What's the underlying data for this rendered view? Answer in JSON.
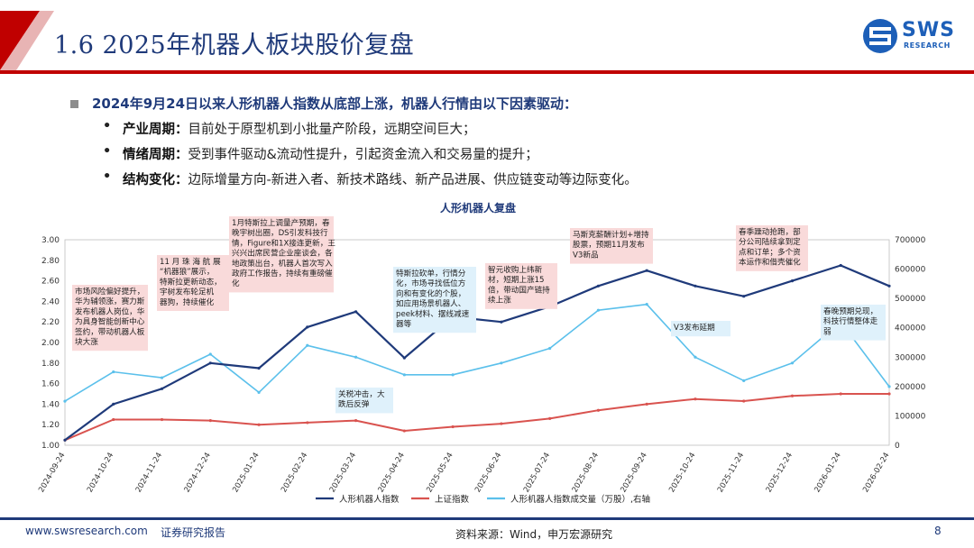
{
  "header": {
    "title": "1.6 2025年机器人板块股价复盘"
  },
  "logo": {
    "text": "SWS",
    "sub": "RESEARCH"
  },
  "bullets": {
    "main": "2024年9月24日以来人形机器人指数从底部上涨，机器人行情由以下因素驱动：",
    "items": [
      {
        "key": "产业周期：",
        "text": "目前处于原型机到小批量产阶段，远期空间巨大；"
      },
      {
        "key": "情绪周期：",
        "text": "受到事件驱动&流动性提升，引起资金流入和交易量的提升；"
      },
      {
        "key": "结构变化：",
        "text": "边际增量方向-新进入者、新技术路线、新产品进展、供应链变动等边际变化。"
      }
    ]
  },
  "colors": {
    "index": "#1f3a7a",
    "sh": "#d9534f",
    "vol": "#5bc0eb",
    "brand": "#c00000",
    "annBg": "#f9dada",
    "annBg2": "#dff1fb"
  },
  "chart_data": {
    "type": "line",
    "title": "人形机器人复盘",
    "x": [
      "2024-09-24",
      "2024-10-24",
      "2024-11-24",
      "2024-12-24",
      "2025-01-24",
      "2025-02-24",
      "2025-03-24",
      "2025-04-24",
      "2025-05-24",
      "2025-06-24",
      "2025-07-24",
      "2025-08-24",
      "2025-09-24",
      "2025-10-24",
      "2025-11-24",
      "2025-12-24",
      "2026-01-24",
      "2026-02-24"
    ],
    "ylim": [
      1.0,
      3.0
    ],
    "y_ticks": [
      "1.00",
      "1.20",
      "1.40",
      "1.60",
      "1.80",
      "2.00",
      "2.20",
      "2.40",
      "2.60",
      "2.80",
      "3.00"
    ],
    "y2lim": [
      0,
      700000
    ],
    "y2_ticks": [
      "0",
      "100000",
      "200000",
      "300000",
      "400000",
      "500000",
      "600000",
      "700000"
    ],
    "series": [
      {
        "name": "人形机器人指数",
        "axis": "left",
        "values": [
          1.05,
          1.4,
          1.55,
          1.8,
          1.75,
          2.15,
          2.3,
          1.85,
          2.25,
          2.2,
          2.35,
          2.55,
          2.7,
          2.55,
          2.45,
          2.6,
          2.75,
          2.55
        ]
      },
      {
        "name": "上证指数",
        "axis": "left",
        "values": [
          1.05,
          1.25,
          1.25,
          1.24,
          1.2,
          1.22,
          1.24,
          1.14,
          1.18,
          1.21,
          1.26,
          1.34,
          1.4,
          1.45,
          1.43,
          1.48,
          1.5,
          1.5
        ]
      },
      {
        "name": "人形机器人指数成交量（万股）,右轴",
        "axis": "right",
        "values": [
          150000,
          250000,
          230000,
          310000,
          180000,
          340000,
          300000,
          240000,
          240000,
          280000,
          330000,
          460000,
          480000,
          300000,
          220000,
          280000,
          420000,
          200000
        ]
      }
    ],
    "annotations": [
      {
        "text": [
          "市场风险偏好提升，",
          "华为辅领涨，赛力斯",
          "发布机器人岗位，华",
          "为具身智能创新中心",
          "签约，带动机器人板",
          "块大涨"
        ]
      },
      {
        "text": [
          "11 月 珠 海 航 展",
          "“机器狼”展示，",
          "特斯拉更新动态，",
          "宇树发布轮足机",
          "器狗，持续催化"
        ]
      },
      {
        "text": [
          "1月特斯拉上调量产预期，春",
          "晚宇树出圈，DS引发科技行",
          "情，Figure和1X接连更新，王",
          "兴兴出席民营企业座谈会，各",
          "地政策出台，机器人首次写入",
          "政府工作报告，持续有重磅催",
          "化"
        ]
      },
      {
        "text": [
          "关税冲击，大",
          "跌后反弹"
        ]
      },
      {
        "text": [
          "特斯拉砍单，行情分",
          "化，市场寻找低位方",
          "向和有变化的个股，",
          "如应用场景机器人、",
          "peek材料、摆线减速",
          "器等"
        ]
      },
      {
        "text": [
          "智元收购上纬新",
          "材，短期上涨15",
          "倍，带动国产链持",
          "续上涨"
        ]
      },
      {
        "text": [
          "马斯克薪酬计划+增持",
          "股票，预期11月发布",
          "V3新品"
        ]
      },
      {
        "text": [
          "V3发布延期"
        ]
      },
      {
        "text": [
          "春季躁动抢跑，部",
          "分公司陆续拿到定",
          "点和订单；多个资",
          "本运作和借壳催化"
        ]
      },
      {
        "text": [
          "春晚预期兑现，",
          "科技行情整体走",
          "弱"
        ]
      }
    ]
  },
  "footer": {
    "site": "www.swsresearch.com",
    "type": "证券研究报告",
    "source": "资料来源：Wind，申万宏源研究",
    "page": "8"
  }
}
